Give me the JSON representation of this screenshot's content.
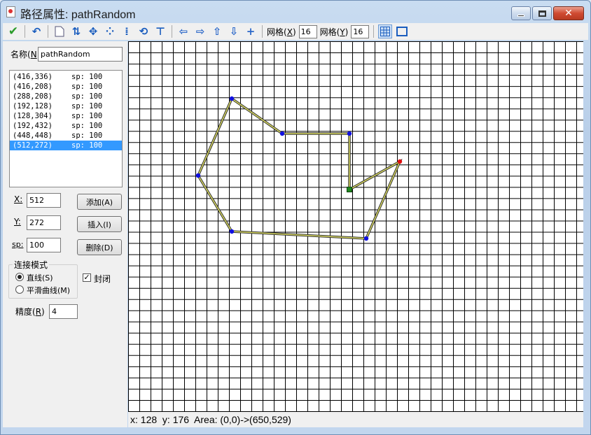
{
  "window": {
    "title": "路径属性: pathRandom",
    "close_label": "✕"
  },
  "toolbar": {
    "grid_x_label": "网格",
    "grid_x_key": "X",
    "grid_x_value": "16",
    "grid_y_label": "网格",
    "grid_y_key": "Y",
    "grid_y_value": "16"
  },
  "name_field": {
    "label": "名称",
    "key": "N",
    "value": "pathRandom"
  },
  "points": [
    {
      "coord": "(416,336)",
      "sp": "sp: 100"
    },
    {
      "coord": "(416,208)",
      "sp": "sp: 100"
    },
    {
      "coord": "(288,208)",
      "sp": "sp: 100"
    },
    {
      "coord": "(192,128)",
      "sp": "sp: 100"
    },
    {
      "coord": "(128,304)",
      "sp": "sp: 100"
    },
    {
      "coord": "(192,432)",
      "sp": "sp: 100"
    },
    {
      "coord": "(448,448)",
      "sp": "sp: 100"
    },
    {
      "coord": "(512,272)",
      "sp": "sp: 100",
      "selected": true
    }
  ],
  "editor": {
    "x_label": "X:",
    "x_value": "512",
    "y_label": "Y:",
    "y_value": "272",
    "sp_label": "sp:",
    "sp_value": "100",
    "add_button": "添加(A)",
    "insert_button": "插入(I)",
    "delete_button": "删除(D)"
  },
  "mode": {
    "group_title": "连接模式",
    "line_option": "直线(S)",
    "smooth_option": "平滑曲线(M)",
    "selected": "line",
    "closed_label": "封闭",
    "closed_checked": true,
    "precision_label": "精度",
    "precision_key": "R",
    "precision_value": "4"
  },
  "canvas": {
    "grid_size": 16,
    "area": [
      650,
      529
    ],
    "path_points": [
      [
        416,
        336
      ],
      [
        416,
        208
      ],
      [
        288,
        208
      ],
      [
        192,
        128
      ],
      [
        128,
        304
      ],
      [
        192,
        432
      ],
      [
        448,
        448
      ],
      [
        512,
        272
      ]
    ],
    "closed": true,
    "start_color": "#1f8a1f",
    "selected_color": "#e01010",
    "vertex_color": "#1010e0",
    "line_color": "#d8d860"
  },
  "status": "x: 128  y: 176  Area: (0,0)->(650,529)"
}
